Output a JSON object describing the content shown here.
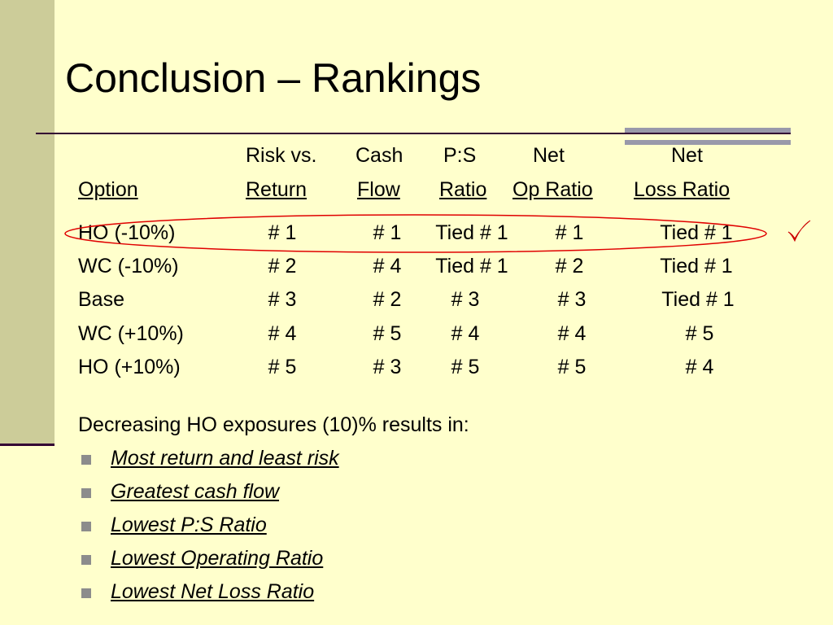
{
  "slide": {
    "title": "Conclusion – Rankings"
  },
  "table": {
    "headers": [
      {
        "line1": "",
        "line2": "Option"
      },
      {
        "line1": "Risk vs.",
        "line2": "Return"
      },
      {
        "line1": "Cash",
        "line2": "Flow"
      },
      {
        "line1": "P:S",
        "line2": "Ratio"
      },
      {
        "line1": "Net",
        "line2": "Op Ratio"
      },
      {
        "line1": "Net",
        "line2": "Loss Ratio"
      }
    ],
    "rows": [
      {
        "option": "HO (-10%)",
        "values": [
          "# 1",
          "# 1",
          "Tied # 1",
          "# 1",
          "Tied # 1"
        ]
      },
      {
        "option": "WC (-10%)",
        "values": [
          "# 2",
          "# 4",
          "Tied # 1",
          "# 2",
          "Tied # 1"
        ]
      },
      {
        "option": "Base",
        "values": [
          "# 3",
          "# 2",
          "# 3",
          "# 3",
          "Tied # 1"
        ]
      },
      {
        "option": "WC (+10%)",
        "values": [
          "# 4",
          "# 5",
          "# 4",
          "# 4",
          "# 5"
        ]
      },
      {
        "option": "HO (+10%)",
        "values": [
          "# 5",
          "# 3",
          "# 5",
          "# 5",
          "# 4"
        ]
      }
    ],
    "highlight_color": "#E00000",
    "check_color": "#CC0000",
    "check_icon": "checkmark-icon"
  },
  "summary": {
    "intro": "Decreasing HO exposures (10)% results in:",
    "bullets": [
      "Most return and least risk",
      "Greatest cash flow",
      "Lowest P:S Ratio",
      "Lowest Operating Ratio",
      "Lowest Net Loss Ratio"
    ]
  },
  "colors": {
    "background": "#FFFFCC",
    "side_bar": "#CCCC99",
    "rule": "#330033",
    "accent_bar": "#9999AA",
    "bullet": "#8C8C8C"
  }
}
